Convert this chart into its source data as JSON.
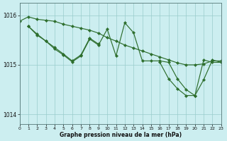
{
  "title": "Graphe pression niveau de la mer (hPa)",
  "background_color": "#cceef0",
  "grid_color": "#99cccc",
  "line_color": "#2d6e2d",
  "xlim": [
    0,
    23
  ],
  "ylim": [
    1013.8,
    1016.25
  ],
  "yticks": [
    1014,
    1015,
    1016
  ],
  "xticks": [
    0,
    1,
    2,
    3,
    4,
    5,
    6,
    7,
    8,
    9,
    10,
    11,
    12,
    13,
    14,
    15,
    16,
    17,
    18,
    19,
    20,
    21,
    22,
    23
  ],
  "line1_x": [
    0,
    1,
    2,
    3,
    4,
    5,
    6,
    7,
    8,
    9,
    10,
    11,
    12,
    13,
    14,
    15,
    16,
    17,
    18,
    19,
    20,
    21,
    22,
    23
  ],
  "line1_y": [
    1015.88,
    1015.97,
    1015.92,
    1015.9,
    1015.88,
    1015.82,
    1015.78,
    1015.74,
    1015.7,
    1015.64,
    1015.55,
    1015.48,
    1015.4,
    1015.34,
    1015.28,
    1015.22,
    1015.16,
    1015.1,
    1015.04,
    1015.0,
    1015.0,
    1015.02,
    1015.08,
    1015.08
  ],
  "line2_x": [
    1,
    2,
    3,
    4,
    5,
    6,
    7,
    8,
    9,
    10,
    11,
    12,
    13,
    14,
    15,
    16,
    17,
    18,
    19,
    20,
    21,
    22,
    23
  ],
  "line2_y": [
    1015.78,
    1015.6,
    1015.48,
    1015.32,
    1015.2,
    1015.06,
    1015.18,
    1015.52,
    1015.4,
    1015.72,
    1015.18,
    1015.85,
    1015.65,
    1015.08,
    1015.08,
    1015.08,
    1015.05,
    1014.72,
    1014.5,
    1014.38,
    1015.1,
    1015.05,
    1015.05
  ],
  "line3_x": [
    1,
    2,
    3,
    4,
    5,
    6,
    7,
    8,
    9
  ],
  "line3_y": [
    1015.78,
    1015.62,
    1015.48,
    1015.35,
    1015.22,
    1015.08,
    1015.2,
    1015.54,
    1015.42
  ],
  "line4_x": [
    16,
    17,
    18,
    19,
    20,
    21,
    22,
    23
  ],
  "line4_y": [
    1015.05,
    1014.72,
    1014.52,
    1014.38,
    1014.38,
    1014.7,
    1015.1,
    1015.05
  ]
}
